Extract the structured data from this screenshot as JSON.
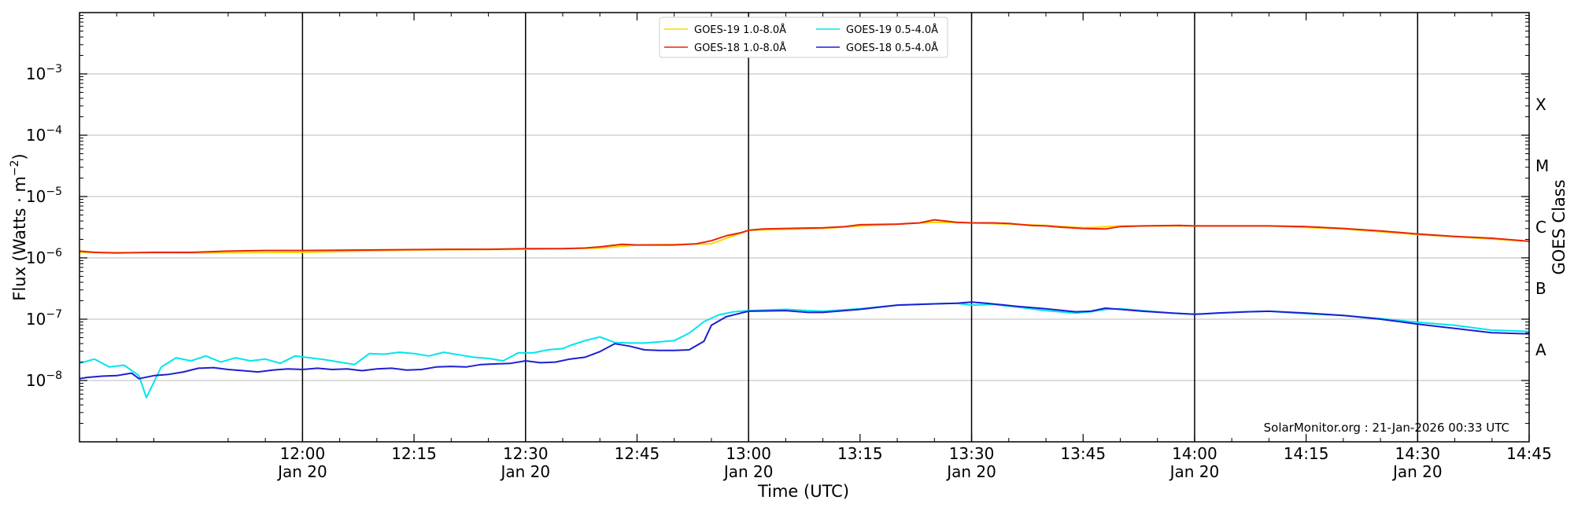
{
  "chart_data": {
    "type": "line",
    "title": "",
    "xlabel": "Time (UTC)",
    "ylabel": "Flux (Watts · m",
    "ylabel_exp": "−2",
    "ylabel_close": ")",
    "right_label": "GOES Class",
    "y_scale": "log",
    "ylim": [
      1e-09,
      0.01
    ],
    "x_range_minutes": [
      690,
      885
    ],
    "x_ticks": [
      {
        "t": 720,
        "label": "12:00",
        "date": "Jan 20",
        "major": true
      },
      {
        "t": 735,
        "label": "12:15",
        "date": "",
        "major": false
      },
      {
        "t": 750,
        "label": "12:30",
        "date": "Jan 20",
        "major": true
      },
      {
        "t": 765,
        "label": "12:45",
        "date": "",
        "major": false
      },
      {
        "t": 780,
        "label": "13:00",
        "date": "Jan 20",
        "major": true
      },
      {
        "t": 795,
        "label": "13:15",
        "date": "",
        "major": false
      },
      {
        "t": 810,
        "label": "13:30",
        "date": "Jan 20",
        "major": true
      },
      {
        "t": 825,
        "label": "13:45",
        "date": "",
        "major": false
      },
      {
        "t": 840,
        "label": "14:00",
        "date": "Jan 20",
        "major": true
      },
      {
        "t": 855,
        "label": "14:15",
        "date": "",
        "major": false
      },
      {
        "t": 870,
        "label": "14:30",
        "date": "Jan 20",
        "major": true
      },
      {
        "t": 885,
        "label": "14:45",
        "date": "",
        "major": false
      }
    ],
    "y_ticks": [
      {
        "exp": -8,
        "label": "10",
        "sup": "−8"
      },
      {
        "exp": -7,
        "label": "10",
        "sup": "−7"
      },
      {
        "exp": -6,
        "label": "10",
        "sup": "−6"
      },
      {
        "exp": -5,
        "label": "10",
        "sup": "−5"
      },
      {
        "exp": -4,
        "label": "10",
        "sup": "−4"
      },
      {
        "exp": -3,
        "label": "10",
        "sup": "−3"
      }
    ],
    "goes_classes": [
      {
        "label": "A",
        "exp": -7.5
      },
      {
        "label": "B",
        "exp": -6.5
      },
      {
        "label": "C",
        "exp": -5.5
      },
      {
        "label": "M",
        "exp": -4.5
      },
      {
        "label": "X",
        "exp": -3.5
      }
    ],
    "grid": true,
    "legend_position": "top-center",
    "credit": "SolarMonitor.org : 21-Jan-2026 00:33 UTC",
    "series": [
      {
        "name": "GOES-19 1.0-8.0Å",
        "color": "#FFD700",
        "points": [
          [
            690,
            -5.91
          ],
          [
            705,
            -5.92
          ],
          [
            720,
            -5.91
          ],
          [
            735,
            -5.87
          ],
          [
            750,
            -5.86
          ],
          [
            760,
            -5.84
          ],
          [
            765,
            -5.79
          ],
          [
            775,
            -5.77
          ],
          [
            780,
            -5.55
          ],
          [
            790,
            -5.52
          ],
          [
            795,
            -5.48
          ],
          [
            805,
            -5.42
          ],
          [
            810,
            -5.43
          ],
          [
            820,
            -5.47
          ],
          [
            825,
            -5.51
          ],
          [
            830,
            -5.48
          ],
          [
            840,
            -5.48
          ],
          [
            850,
            -5.48
          ],
          [
            860,
            -5.53
          ],
          [
            870,
            -5.62
          ],
          [
            885,
            -5.73
          ]
        ]
      },
      {
        "name": "GOES-18 1.0-8.0Å",
        "color": "#E8250A",
        "points": [
          [
            690,
            -5.89
          ],
          [
            692,
            -5.91
          ],
          [
            695,
            -5.92
          ],
          [
            700,
            -5.91
          ],
          [
            705,
            -5.91
          ],
          [
            710,
            -5.89
          ],
          [
            715,
            -5.88
          ],
          [
            720,
            -5.88
          ],
          [
            730,
            -5.87
          ],
          [
            740,
            -5.86
          ],
          [
            745,
            -5.86
          ],
          [
            750,
            -5.85
          ],
          [
            752,
            -5.85
          ],
          [
            755,
            -5.85
          ],
          [
            758,
            -5.84
          ],
          [
            760,
            -5.82
          ],
          [
            763,
            -5.78
          ],
          [
            765,
            -5.79
          ],
          [
            770,
            -5.79
          ],
          [
            773,
            -5.77
          ],
          [
            775,
            -5.72
          ],
          [
            777,
            -5.64
          ],
          [
            779,
            -5.59
          ],
          [
            780,
            -5.55
          ],
          [
            782,
            -5.53
          ],
          [
            785,
            -5.52
          ],
          [
            790,
            -5.51
          ],
          [
            793,
            -5.49
          ],
          [
            795,
            -5.46
          ],
          [
            800,
            -5.45
          ],
          [
            803,
            -5.43
          ],
          [
            805,
            -5.38
          ],
          [
            808,
            -5.42
          ],
          [
            810,
            -5.43
          ],
          [
            813,
            -5.43
          ],
          [
            815,
            -5.44
          ],
          [
            818,
            -5.47
          ],
          [
            820,
            -5.48
          ],
          [
            822,
            -5.5
          ],
          [
            825,
            -5.52
          ],
          [
            828,
            -5.53
          ],
          [
            830,
            -5.49
          ],
          [
            833,
            -5.48
          ],
          [
            838,
            -5.47
          ],
          [
            840,
            -5.48
          ],
          [
            845,
            -5.48
          ],
          [
            850,
            -5.48
          ],
          [
            855,
            -5.49
          ],
          [
            860,
            -5.52
          ],
          [
            865,
            -5.56
          ],
          [
            870,
            -5.61
          ],
          [
            875,
            -5.65
          ],
          [
            880,
            -5.68
          ],
          [
            885,
            -5.73
          ]
        ]
      },
      {
        "name": "GOES-19 0.5-4.0Å",
        "color": "#00E5EE",
        "points": [
          [
            690,
            -7.72
          ],
          [
            692,
            -7.65
          ],
          [
            694,
            -7.78
          ],
          [
            696,
            -7.75
          ],
          [
            698,
            -7.92
          ],
          [
            699,
            -8.28
          ],
          [
            701,
            -7.78
          ],
          [
            703,
            -7.63
          ],
          [
            705,
            -7.68
          ],
          [
            707,
            -7.6
          ],
          [
            709,
            -7.7
          ],
          [
            711,
            -7.63
          ],
          [
            713,
            -7.68
          ],
          [
            715,
            -7.65
          ],
          [
            717,
            -7.72
          ],
          [
            719,
            -7.6
          ],
          [
            721,
            -7.63
          ],
          [
            723,
            -7.66
          ],
          [
            725,
            -7.7
          ],
          [
            727,
            -7.74
          ],
          [
            729,
            -7.56
          ],
          [
            731,
            -7.57
          ],
          [
            733,
            -7.54
          ],
          [
            735,
            -7.56
          ],
          [
            737,
            -7.6
          ],
          [
            739,
            -7.54
          ],
          [
            741,
            -7.58
          ],
          [
            743,
            -7.62
          ],
          [
            745,
            -7.64
          ],
          [
            747,
            -7.68
          ],
          [
            749,
            -7.55
          ],
          [
            751,
            -7.55
          ],
          [
            753,
            -7.5
          ],
          [
            755,
            -7.48
          ],
          [
            756,
            -7.43
          ],
          [
            758,
            -7.35
          ],
          [
            760,
            -7.29
          ],
          [
            762,
            -7.38
          ],
          [
            764,
            -7.39
          ],
          [
            766,
            -7.39
          ],
          [
            768,
            -7.37
          ],
          [
            770,
            -7.35
          ],
          [
            772,
            -7.23
          ],
          [
            774,
            -7.04
          ],
          [
            776,
            -6.93
          ],
          [
            778,
            -6.88
          ],
          [
            780,
            -6.86
          ],
          [
            785,
            -6.84
          ],
          [
            788,
            -6.86
          ],
          [
            790,
            -6.87
          ],
          [
            795,
            -6.83
          ],
          [
            800,
            -6.77
          ],
          [
            805,
            -6.75
          ],
          [
            808,
            -6.74
          ],
          [
            810,
            -6.77
          ],
          [
            813,
            -6.76
          ],
          [
            816,
            -6.8
          ],
          [
            820,
            -6.86
          ],
          [
            824,
            -6.9
          ],
          [
            826,
            -6.88
          ],
          [
            828,
            -6.84
          ],
          [
            830,
            -6.83
          ],
          [
            833,
            -6.86
          ],
          [
            837,
            -6.9
          ],
          [
            840,
            -6.92
          ],
          [
            843,
            -6.9
          ],
          [
            847,
            -6.88
          ],
          [
            850,
            -6.87
          ],
          [
            855,
            -6.91
          ],
          [
            860,
            -6.94
          ],
          [
            865,
            -6.99
          ],
          [
            870,
            -7.05
          ],
          [
            875,
            -7.1
          ],
          [
            880,
            -7.18
          ],
          [
            885,
            -7.2
          ]
        ]
      },
      {
        "name": "GOES-18 0.5-4.0Å",
        "color": "#1E1ED2",
        "points": [
          [
            690,
            -7.97
          ],
          [
            691,
            -7.95
          ],
          [
            693,
            -7.93
          ],
          [
            695,
            -7.92
          ],
          [
            697,
            -7.88
          ],
          [
            698,
            -7.97
          ],
          [
            700,
            -7.92
          ],
          [
            702,
            -7.9
          ],
          [
            704,
            -7.86
          ],
          [
            706,
            -7.8
          ],
          [
            708,
            -7.79
          ],
          [
            710,
            -7.82
          ],
          [
            712,
            -7.84
          ],
          [
            714,
            -7.86
          ],
          [
            716,
            -7.83
          ],
          [
            718,
            -7.81
          ],
          [
            720,
            -7.82
          ],
          [
            722,
            -7.8
          ],
          [
            724,
            -7.82
          ],
          [
            726,
            -7.81
          ],
          [
            728,
            -7.84
          ],
          [
            730,
            -7.81
          ],
          [
            732,
            -7.8
          ],
          [
            734,
            -7.83
          ],
          [
            736,
            -7.82
          ],
          [
            738,
            -7.78
          ],
          [
            740,
            -7.77
          ],
          [
            742,
            -7.78
          ],
          [
            744,
            -7.74
          ],
          [
            746,
            -7.73
          ],
          [
            748,
            -7.72
          ],
          [
            750,
            -7.68
          ],
          [
            752,
            -7.71
          ],
          [
            754,
            -7.7
          ],
          [
            756,
            -7.65
          ],
          [
            758,
            -7.62
          ],
          [
            760,
            -7.53
          ],
          [
            762,
            -7.4
          ],
          [
            764,
            -7.44
          ],
          [
            766,
            -7.5
          ],
          [
            768,
            -7.51
          ],
          [
            770,
            -7.51
          ],
          [
            772,
            -7.5
          ],
          [
            774,
            -7.36
          ],
          [
            775,
            -7.1
          ],
          [
            777,
            -6.96
          ],
          [
            779,
            -6.9
          ],
          [
            780,
            -6.87
          ],
          [
            785,
            -6.86
          ],
          [
            788,
            -6.89
          ],
          [
            790,
            -6.89
          ],
          [
            795,
            -6.84
          ],
          [
            800,
            -6.77
          ],
          [
            805,
            -6.75
          ],
          [
            808,
            -6.74
          ],
          [
            810,
            -6.72
          ],
          [
            812,
            -6.74
          ],
          [
            816,
            -6.79
          ],
          [
            820,
            -6.83
          ],
          [
            824,
            -6.88
          ],
          [
            826,
            -6.87
          ],
          [
            828,
            -6.82
          ],
          [
            830,
            -6.84
          ],
          [
            833,
            -6.87
          ],
          [
            837,
            -6.9
          ],
          [
            840,
            -6.92
          ],
          [
            843,
            -6.9
          ],
          [
            847,
            -6.88
          ],
          [
            850,
            -6.87
          ],
          [
            855,
            -6.9
          ],
          [
            860,
            -6.94
          ],
          [
            865,
            -7.0
          ],
          [
            870,
            -7.08
          ],
          [
            875,
            -7.15
          ],
          [
            880,
            -7.22
          ],
          [
            885,
            -7.24
          ]
        ]
      }
    ]
  }
}
